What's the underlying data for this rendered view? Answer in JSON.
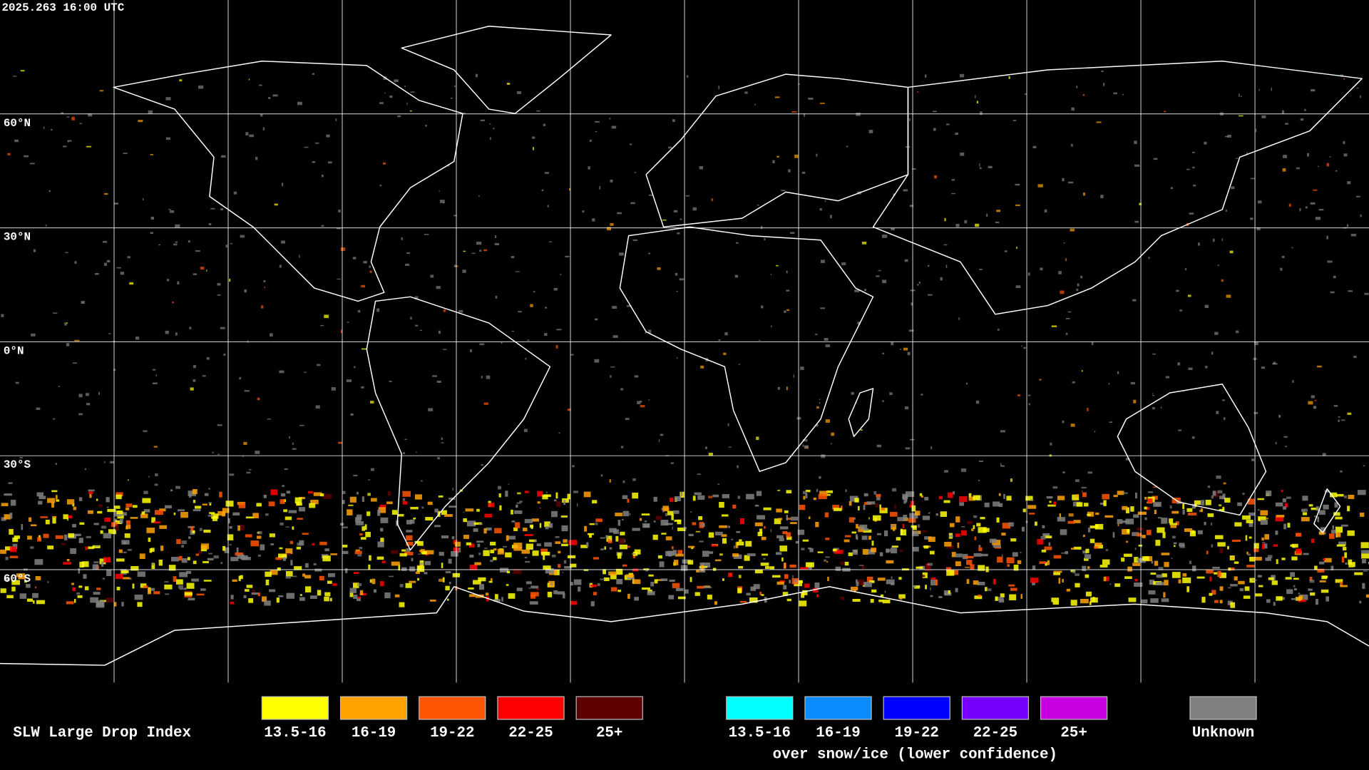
{
  "header": {
    "timestamp": "2025.263 16:00 UTC"
  },
  "map": {
    "latitude_labels": [
      "60°N",
      "30°N",
      "0°N",
      "30°S",
      "60°S"
    ]
  },
  "legend": {
    "title": "SLW Large Drop Index",
    "items": [
      {
        "label": "13.5-16",
        "color": "#ffff00"
      },
      {
        "label": "16-19",
        "color": "#ffa200"
      },
      {
        "label": "19-22",
        "color": "#ff5500"
      },
      {
        "label": "22-25",
        "color": "#ff0000"
      },
      {
        "label": "25+",
        "color": "#5c0000"
      }
    ],
    "snow_ice_items": [
      {
        "label": "13.5-16",
        "color": "#00ffff"
      },
      {
        "label": "16-19",
        "color": "#0a8cff"
      },
      {
        "label": "19-22",
        "color": "#0000ff"
      },
      {
        "label": "22-25",
        "color": "#7800ff"
      },
      {
        "label": "25+",
        "color": "#c800e0"
      }
    ],
    "snow_ice_caption": "over snow/ice (lower confidence)",
    "unknown": {
      "label": "Unknown",
      "color": "#808080"
    }
  }
}
